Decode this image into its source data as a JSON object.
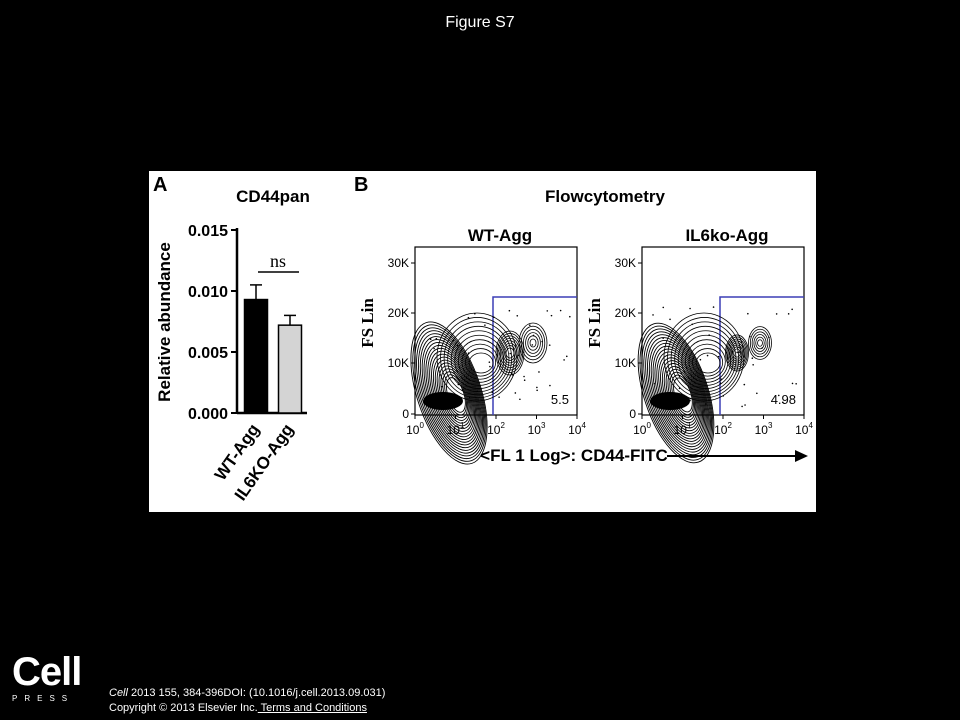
{
  "page": {
    "title": "Figure S7"
  },
  "panel_a": {
    "letter": "A",
    "title": "CD44pan",
    "significance": "ns",
    "error_bars": [
      0.0012,
      0.0008
    ]
  },
  "panel_b": {
    "letter": "B",
    "title": "Flowcytometry",
    "x_axis_label": "<FL 1 Log>: CD44-FITC",
    "y_axis_label": "FS Lin",
    "plots": [
      {
        "title": "WT-Agg",
        "gate_value": "5.5"
      },
      {
        "title": "IL6ko-Agg",
        "gate_value": "4.98"
      }
    ],
    "y_ticks": [
      "30K",
      "20K",
      "10K",
      "0"
    ],
    "x_ticks": [
      "10",
      "10",
      "10",
      "10",
      "10"
    ],
    "x_tick_exponents": [
      "0",
      "1",
      "2",
      "3",
      "4"
    ]
  },
  "chart_data": [
    {
      "type": "bar",
      "title": "CD44pan",
      "xlabel": "",
      "ylabel": "Relative abundance",
      "categories": [
        "WT-Agg",
        "IL6KO-Agg"
      ],
      "values": [
        0.0093,
        0.0072
      ],
      "colors": [
        "#000000",
        "#d4d4d4"
      ],
      "ylim": [
        0,
        0.015
      ],
      "yticks": [
        "0.000",
        "0.005",
        "0.010",
        "0.015"
      ],
      "ytick_values": [
        0,
        0.005,
        0.01,
        0.015
      ]
    }
  ],
  "footer": {
    "logo_word": "Cell",
    "logo_press": "PRESS",
    "citation_journal": "Cell",
    "citation_rest": " 2013 155, 384-396DOI: (10.1016/j.cell.2013.09.031)",
    "copyright": "Copyright © 2013 Elsevier Inc.",
    "terms_link": " Terms and Conditions"
  }
}
